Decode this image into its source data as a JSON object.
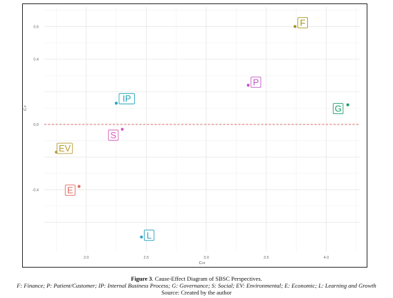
{
  "chart_data": {
    "type": "scatter",
    "xlabel": "C+r",
    "ylabel": "C-r",
    "xlim": [
      1.65,
      4.28
    ],
    "ylim": [
      -0.78,
      0.72
    ],
    "x_ticks": [
      {
        "value": 2.0,
        "label": "2.0"
      },
      {
        "value": 2.5,
        "label": "2.5"
      },
      {
        "value": 3.0,
        "label": "3.0"
      },
      {
        "value": 3.5,
        "label": "3.5"
      },
      {
        "value": 4.0,
        "label": "4.0"
      }
    ],
    "y_ticks": [
      {
        "value": 0.6,
        "label": "0.6"
      },
      {
        "value": 0.4,
        "label": "0.4"
      },
      {
        "value": 0.0,
        "label": "0.0"
      },
      {
        "value": -0.4,
        "label": "-0.4"
      }
    ],
    "grid": true,
    "reference_line": {
      "y": 0.0,
      "style": "dashed",
      "color": "#d9534f"
    },
    "points": [
      {
        "label": "F",
        "x": 3.74,
        "y": 0.6,
        "color": "#a09418"
      },
      {
        "label": "P",
        "x": 3.35,
        "y": 0.24,
        "color": "#c455c8"
      },
      {
        "label": "IP",
        "x": 2.25,
        "y": 0.13,
        "color": "#1fa6b8"
      },
      {
        "label": "G",
        "x": 4.18,
        "y": 0.12,
        "color": "#1d9a6c"
      },
      {
        "label": "S",
        "x": 2.3,
        "y": -0.03,
        "color": "#d35ab8"
      },
      {
        "label": "EV",
        "x": 1.75,
        "y": -0.17,
        "color": "#b59a2c"
      },
      {
        "label": "E",
        "x": 1.94,
        "y": -0.38,
        "color": "#e06a5f"
      },
      {
        "label": "L",
        "x": 2.46,
        "y": -0.69,
        "color": "#2ba3c9"
      }
    ]
  },
  "caption": {
    "figure_number": "Figure 3",
    "title": ". Cause-Effect Diagram of SBSC Perspectives.",
    "legend_line": "F: Finance; P: Patient/Customer; IP: Internal Business Process; G: Governance; S: Social; EV: Environmental; E: Economic; L: Learning and Growth",
    "source": "Source: Created by the author"
  }
}
